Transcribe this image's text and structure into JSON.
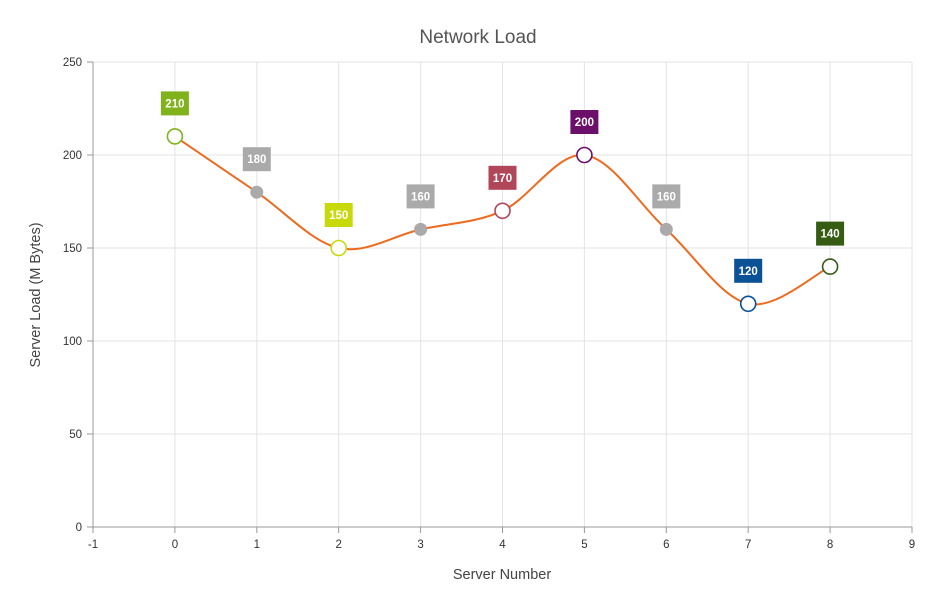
{
  "chart_data": {
    "type": "line",
    "title": "Network Load",
    "xlabel": "Server Number",
    "ylabel": "Server Load (M Bytes)",
    "xlim": [
      -1,
      9
    ],
    "ylim": [
      0,
      250
    ],
    "x_ticks": [
      "-1",
      "0",
      "1",
      "2",
      "3",
      "4",
      "5",
      "6",
      "7",
      "8",
      "9"
    ],
    "y_ticks": [
      "0",
      "50",
      "100",
      "150",
      "200",
      "250"
    ],
    "grid": true,
    "line_color": "#EE6A1E",
    "series": [
      {
        "points": [
          {
            "x": 0,
            "y": 210,
            "label": "210",
            "color": "#7FB21B",
            "hollow": true
          },
          {
            "x": 1,
            "y": 180,
            "label": "180",
            "color": "#AAAAAA",
            "hollow": false
          },
          {
            "x": 2,
            "y": 150,
            "label": "150",
            "color": "#C7D90B",
            "hollow": true
          },
          {
            "x": 3,
            "y": 160,
            "label": "160",
            "color": "#AAAAAA",
            "hollow": false
          },
          {
            "x": 4,
            "y": 170,
            "label": "170",
            "color": "#B14659",
            "hollow": true
          },
          {
            "x": 5,
            "y": 200,
            "label": "200",
            "color": "#6B0F6B",
            "hollow": true
          },
          {
            "x": 6,
            "y": 160,
            "label": "160",
            "color": "#AAAAAA",
            "hollow": false
          },
          {
            "x": 7,
            "y": 120,
            "label": "120",
            "color": "#0A5196",
            "hollow": true
          },
          {
            "x": 8,
            "y": 140,
            "label": "140",
            "color": "#365C14",
            "hollow": true
          }
        ]
      }
    ]
  }
}
